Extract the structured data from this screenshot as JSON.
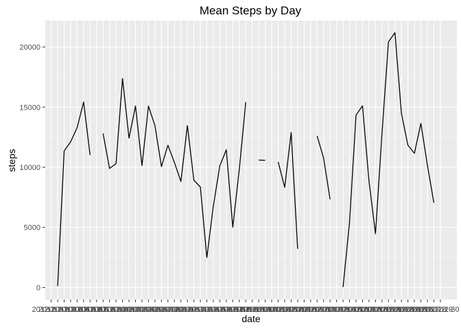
{
  "chart_data": {
    "type": "line",
    "title": "Mean Steps by Day",
    "xlabel": "date",
    "ylabel": "steps",
    "ylim": [
      -1000,
      22200
    ],
    "y_ticks": [
      0,
      5000,
      10000,
      15000,
      20000
    ],
    "y_tick_labels": [
      "0",
      "5000",
      "10000",
      "15000",
      "20000"
    ],
    "grid": true,
    "x_tick_label_prefix": "2012-",
    "x": [
      "2012-10-01",
      "2012-10-02",
      "2012-10-03",
      "2012-10-04",
      "2012-10-05",
      "2012-10-06",
      "2012-10-07",
      "2012-10-08",
      "2012-10-09",
      "2012-10-10",
      "2012-10-11",
      "2012-10-12",
      "2012-10-13",
      "2012-10-14",
      "2012-10-15",
      "2012-10-16",
      "2012-10-17",
      "2012-10-18",
      "2012-10-19",
      "2012-10-20",
      "2012-10-21",
      "2012-10-22",
      "2012-10-23",
      "2012-10-24",
      "2012-10-25",
      "2012-10-26",
      "2012-10-27",
      "2012-10-28",
      "2012-10-29",
      "2012-10-30",
      "2012-10-31",
      "2012-11-01",
      "2012-11-02",
      "2012-11-03",
      "2012-11-04",
      "2012-11-05",
      "2012-11-06",
      "2012-11-07",
      "2012-11-08",
      "2012-11-09",
      "2012-11-10",
      "2012-11-11",
      "2012-11-12",
      "2012-11-13",
      "2012-11-14",
      "2012-11-15",
      "2012-11-16",
      "2012-11-17",
      "2012-11-18",
      "2012-11-19",
      "2012-11-20",
      "2012-11-21",
      "2012-11-22",
      "2012-11-23",
      "2012-11-24",
      "2012-11-25",
      "2012-11-26",
      "2012-11-27",
      "2012-11-28",
      "2012-11-29",
      "2012-11-30"
    ],
    "series": [
      {
        "color": "#000000",
        "values": [
          null,
          126,
          11352,
          12116,
          13294,
          15420,
          11015,
          null,
          12811,
          9900,
          10304,
          17382,
          12426,
          15098,
          10139,
          15084,
          13452,
          10056,
          11829,
          10395,
          8821,
          13460,
          8918,
          8355,
          2492,
          6778,
          10119,
          11458,
          5018,
          9819,
          15414,
          null,
          10600,
          10571,
          null,
          10439,
          8334,
          12883,
          3219,
          null,
          null,
          12608,
          10765,
          7336,
          null,
          41,
          5441,
          14339,
          15110,
          8841,
          4472,
          12787,
          20427,
          21194,
          14478,
          11834,
          11162,
          13646,
          10183,
          7047,
          null
        ]
      }
    ]
  }
}
